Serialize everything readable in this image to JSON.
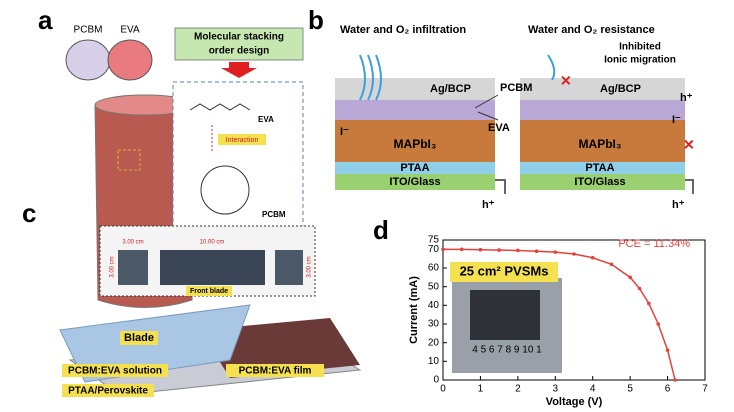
{
  "panel_a": {
    "letter": "a",
    "pcbm": "PCBM",
    "eva": "EVA",
    "design_title": [
      "Molecular stacking",
      "order design"
    ],
    "eva_label": "EVA",
    "interaction": "Interaction",
    "pcbm_label": "PCBM"
  },
  "panel_b": {
    "letter": "b",
    "left_title": "Water and O₂ infiltration",
    "right_title": "Water and O₂ resistance",
    "note": [
      "Inhibited",
      "Ionic migration"
    ],
    "layers_left": [
      "Ag/BCP",
      "MAPbI₃",
      "PTAA",
      "ITO/Glass"
    ],
    "layers_right": [
      "Ag/BCP",
      "MAPbI₃",
      "PTAA",
      "ITO/Glass"
    ],
    "pcbm": "PCBM",
    "eva": "EVA",
    "iodide_labels": [
      "I⁻",
      "I⁻"
    ],
    "hole_labels": [
      "h⁺",
      "h⁺",
      "h⁺"
    ]
  },
  "panel_c": {
    "letter": "c",
    "dims": [
      "3.00 cm",
      "10.00 cm",
      "3.00 cm",
      "3.00 cm"
    ],
    "front_blade": "Front blade",
    "blade": "Blade",
    "solution": "PCBM:EVA solution",
    "film": "PCBM:EVA film",
    "substrate": "PTAA/Perovskite"
  },
  "panel_d": {
    "letter": "d",
    "chart": {
      "type": "line",
      "x_label": "Voltage (V)",
      "y_label": "Current (mA)",
      "annotation": "PCE = 11.34%",
      "inset_title": "25 cm² PVSMs",
      "inset_scale": "4 5 6 7 8 9 10 1",
      "x": [
        0,
        0.5,
        1,
        1.5,
        2,
        2.5,
        3,
        3.5,
        4,
        4.5,
        5,
        5.25,
        5.5,
        5.75,
        6,
        6.2
      ],
      "series": [
        {
          "color": "#e8413c",
          "values": [
            70,
            70,
            69.8,
            69.6,
            69.4,
            69,
            68.5,
            67.5,
            65.5,
            62,
            55,
            49,
            41,
            30,
            16,
            0
          ]
        }
      ],
      "xlim": [
        0,
        7
      ],
      "xticks": [
        0,
        1,
        2,
        3,
        4,
        5,
        6,
        7
      ],
      "ylim": [
        0,
        75
      ],
      "yticks": [
        0,
        10,
        20,
        30,
        40,
        50,
        60,
        70,
        75
      ]
    }
  }
}
